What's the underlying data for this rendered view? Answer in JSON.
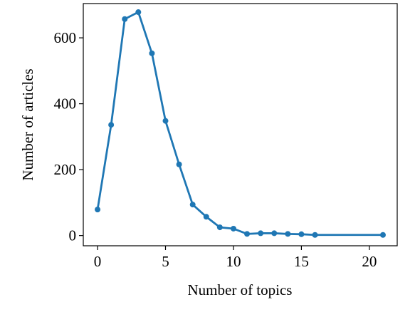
{
  "chart_data": {
    "type": "line",
    "xlabel": "Number of topics",
    "ylabel": "Number of articles",
    "x": [
      0,
      1,
      2,
      3,
      4,
      5,
      6,
      7,
      8,
      9,
      10,
      11,
      12,
      13,
      14,
      15,
      16,
      21
    ],
    "series": [
      {
        "color": "#1f77b4",
        "values": [
          79,
          336,
          657,
          678,
          553,
          348,
          216,
          94,
          57,
          25,
          21,
          5,
          7,
          7,
          5,
          4,
          2,
          2
        ]
      }
    ],
    "xlim": [
      -1.05,
      22.05
    ],
    "ylim": [
      -31,
      704
    ],
    "xticks": [
      0,
      5,
      10,
      15,
      20
    ],
    "yticks": [
      0,
      200,
      400,
      600
    ]
  }
}
